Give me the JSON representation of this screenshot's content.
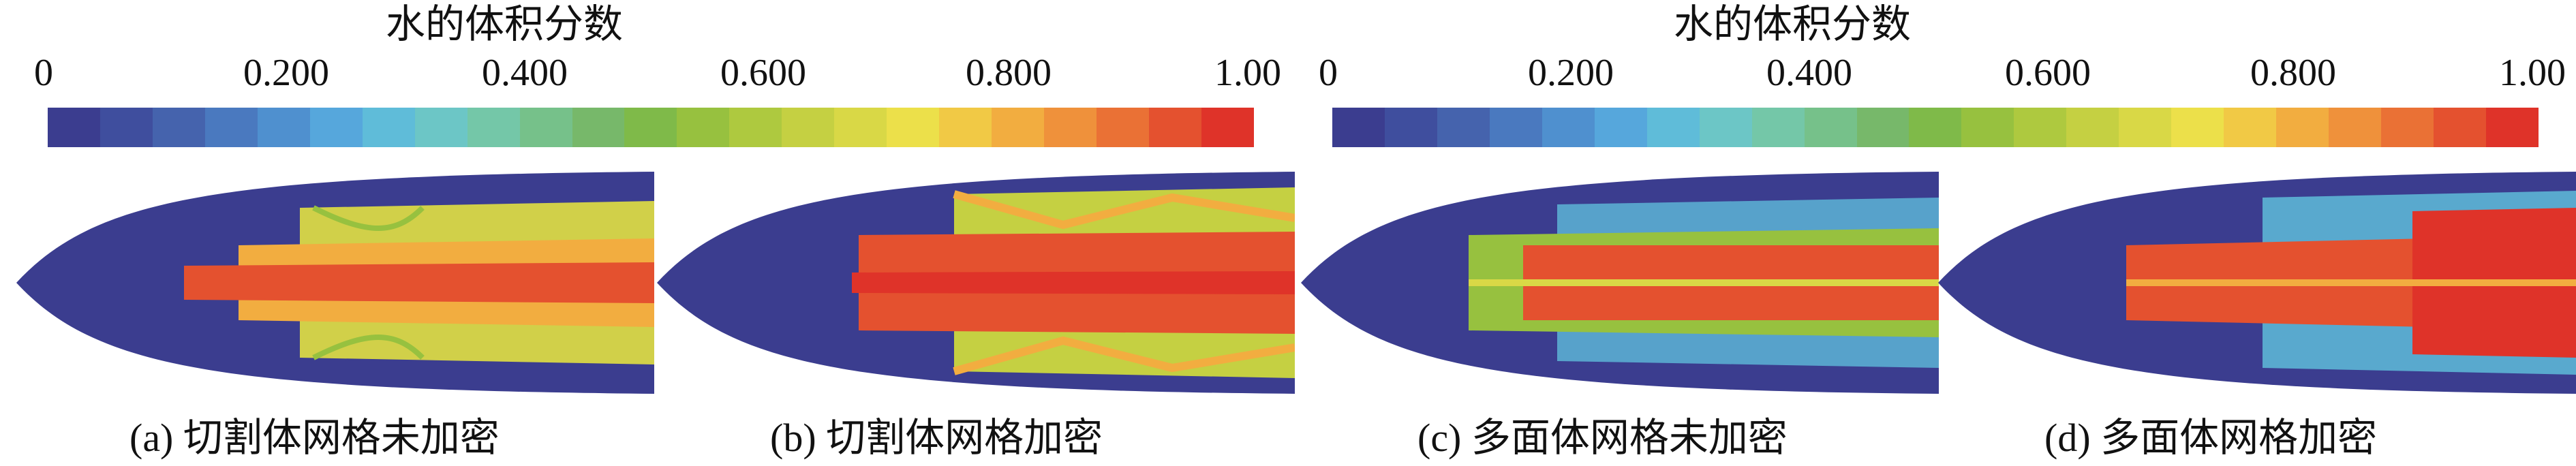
{
  "legends": [
    {
      "title": "水的体积分数",
      "ticks": [
        "0",
        "0.200",
        "0.400",
        "0.600",
        "0.800",
        "1.00"
      ],
      "range": [
        0,
        1
      ]
    },
    {
      "title": "水的体积分数",
      "ticks": [
        "0",
        "0.200",
        "0.400",
        "0.600",
        "0.800",
        "1.00"
      ],
      "range": [
        0,
        1
      ]
    }
  ],
  "colormap": [
    "#3b3d8f",
    "#3f4e9e",
    "#4563ad",
    "#4a79bf",
    "#4f90cf",
    "#56a7dc",
    "#5fbcd9",
    "#6cc6c6",
    "#74c7a8",
    "#76c18a",
    "#77b86a",
    "#7fba49",
    "#97c13f",
    "#aec93f",
    "#c5d042",
    "#d9d846",
    "#ece04a",
    "#f1c945",
    "#f2ad40",
    "#ef913b",
    "#ea7135",
    "#e4512f",
    "#df3329"
  ],
  "panels": [
    {
      "caption": "(a) 切割体网格未加密",
      "mesh": "切割体网格",
      "refined": false
    },
    {
      "caption": "(b) 切割体网格加密",
      "mesh": "切割体网格",
      "refined": true
    },
    {
      "caption": "(c) 多面体网格未加密",
      "mesh": "多面体网格",
      "refined": false
    },
    {
      "caption": "(d) 多面体网格加密",
      "mesh": "多面体网格",
      "refined": true
    }
  ]
}
